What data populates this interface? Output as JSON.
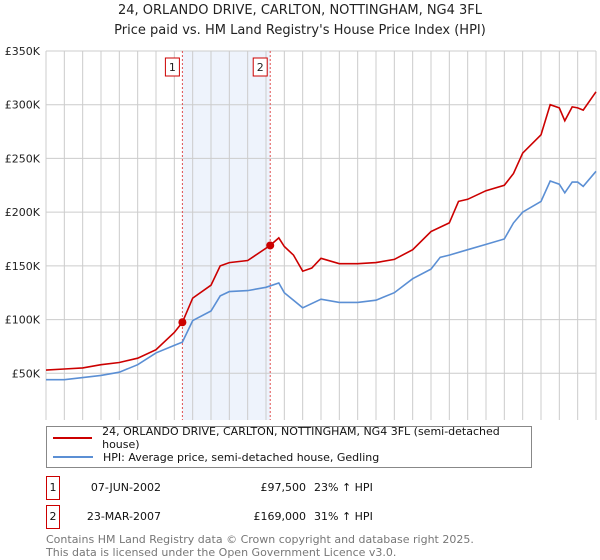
{
  "chart_data": {
    "type": "line",
    "title": "24, ORLANDO DRIVE, CARLTON, NOTTINGHAM, NG4 3FL",
    "subtitle": "Price paid vs. HM Land Registry's House Price Index (HPI)",
    "xlim": [
      1995,
      2025
    ],
    "ylim": [
      0,
      350000
    ],
    "y_ticks": [
      0,
      50000,
      100000,
      150000,
      200000,
      250000,
      300000,
      350000
    ],
    "y_tick_labels": [
      "£0",
      "£50K",
      "£100K",
      "£150K",
      "£200K",
      "£250K",
      "£300K",
      "£350K"
    ],
    "x_ticks": [
      "1995",
      "1996",
      "1997",
      "1998",
      "1999",
      "2000",
      "2001",
      "2002",
      "2003",
      "2004",
      "2005",
      "2006",
      "2007",
      "2008",
      "2009",
      "2010",
      "2011",
      "2012",
      "2013",
      "2014",
      "2015",
      "2016",
      "2017",
      "2018",
      "2019",
      "2020",
      "2021",
      "2022",
      "2023",
      "2024",
      "2025"
    ],
    "grid": true,
    "shaded_range": [
      2002.44,
      2007.23
    ],
    "series": [
      {
        "name": "24, ORLANDO DRIVE, CARLTON, NOTTINGHAM, NG4 3FL (semi-detached house)",
        "color": "#cc0000",
        "x": [
          1995,
          1996,
          1997,
          1998,
          1999,
          2000,
          2001,
          2002,
          2002.44,
          2003,
          2004,
          2004.5,
          2005,
          2006,
          2007.23,
          2007.7,
          2008,
          2008.5,
          2009,
          2009.5,
          2010,
          2011,
          2012,
          2013,
          2014,
          2015,
          2016,
          2017,
          2017.5,
          2018,
          2019,
          2020,
          2020.5,
          2021,
          2022,
          2022.5,
          2023,
          2023.3,
          2023.7,
          2024,
          2024.3,
          2025
        ],
        "y": [
          53000,
          54000,
          55000,
          58000,
          60000,
          64000,
          72000,
          88000,
          97500,
          120000,
          132000,
          150000,
          153000,
          155000,
          169000,
          176000,
          168000,
          160000,
          145000,
          148000,
          157000,
          152000,
          152000,
          153000,
          156000,
          165000,
          182000,
          190000,
          210000,
          212000,
          220000,
          225000,
          236000,
          255000,
          272000,
          300000,
          297000,
          285000,
          298000,
          297000,
          295000,
          312000
        ]
      },
      {
        "name": "HPI: Average price, semi-detached house, Gedling",
        "color": "#5b8fd4",
        "x": [
          1995,
          1996,
          1997,
          1998,
          1999,
          2000,
          2001,
          2002,
          2002.44,
          2003,
          2004,
          2004.5,
          2005,
          2006,
          2007,
          2007.7,
          2008,
          2009,
          2010,
          2011,
          2012,
          2013,
          2014,
          2015,
          2016,
          2016.5,
          2017,
          2018,
          2019,
          2020,
          2020.5,
          2021,
          2022,
          2022.5,
          2023,
          2023.3,
          2023.7,
          2024,
          2024.3,
          2025
        ],
        "y": [
          44000,
          44000,
          46000,
          48000,
          51000,
          58000,
          69000,
          76000,
          79000,
          99000,
          108000,
          122000,
          126000,
          127000,
          130000,
          134000,
          125000,
          111000,
          119000,
          116000,
          116000,
          118000,
          125000,
          138000,
          147000,
          158000,
          160000,
          165000,
          170000,
          175000,
          190000,
          200000,
          210000,
          229000,
          226000,
          218000,
          228000,
          228000,
          224000,
          238000
        ]
      }
    ],
    "annotations": [
      {
        "label": "1",
        "x": 2002.44,
        "y": 97500
      },
      {
        "label": "2",
        "x": 2007.23,
        "y": 169000
      }
    ]
  },
  "legend": {
    "property": "24, ORLANDO DRIVE, CARLTON, NOTTINGHAM, NG4 3FL (semi-detached house)",
    "hpi": "HPI: Average price, semi-detached house, Gedling"
  },
  "sales": [
    {
      "num": "1",
      "date": "07-JUN-2002",
      "price": "£97,500",
      "hpi": "23% ↑ HPI"
    },
    {
      "num": "2",
      "date": "23-MAR-2007",
      "price": "£169,000",
      "hpi": "31% ↑ HPI"
    }
  ],
  "footer": {
    "line1": "Contains HM Land Registry data © Crown copyright and database right 2025.",
    "line2": "This data is licensed under the Open Government Licence v3.0."
  }
}
